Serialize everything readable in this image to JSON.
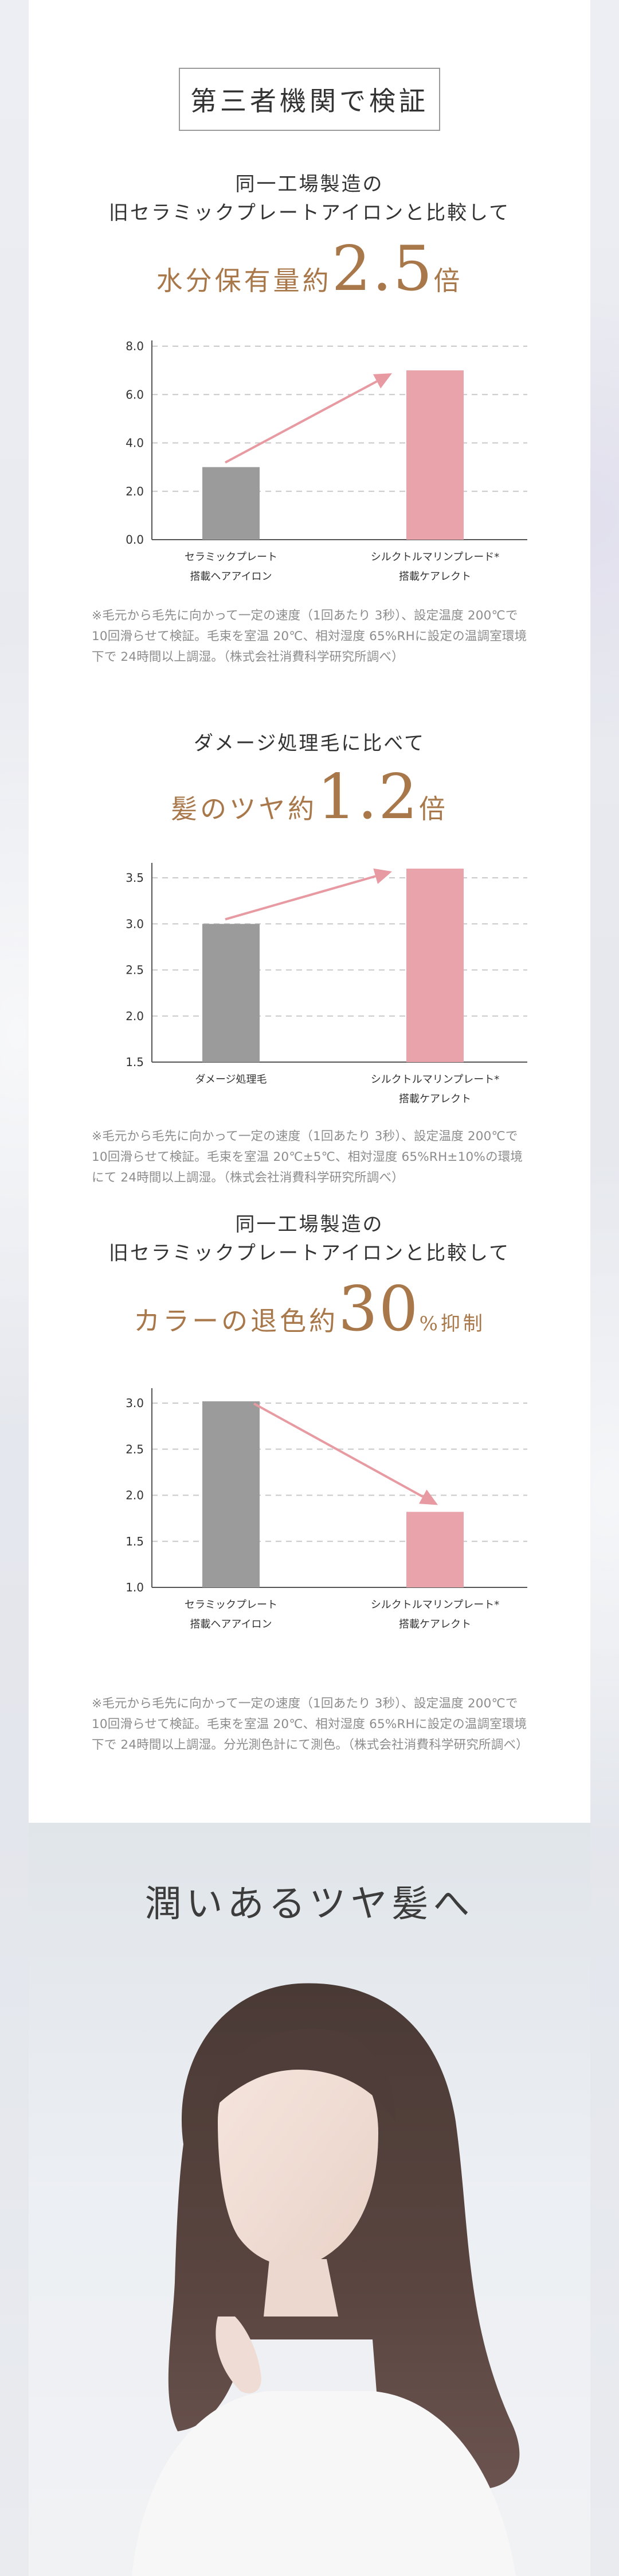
{
  "header": {
    "title": "第三者機関で検証"
  },
  "sections": [
    {
      "sub_lines": [
        "同一工場製造の",
        "旧セラミックプレートアイロンと比較して"
      ],
      "head_text": "水分保有量約",
      "head_num": "2.5",
      "head_unit": "倍",
      "note": "※毛元から毛先に向かって一定の速度（1回あたり 3秒）、設定温度 200℃で 10回滑らせて検証。毛束を室温 20℃、相対湿度 65%RHに設定の温調室環境下で 24時間以上調湿。（株式会社消費科学研究所調べ）"
    },
    {
      "sub_lines": [
        "ダメージ処理毛に比べて"
      ],
      "head_text": "髪のツヤ約",
      "head_num": "1.2",
      "head_unit": "倍",
      "note": "※毛元から毛先に向かって一定の速度（1回あたり 3秒）、設定温度 200℃で 10回滑らせて検証。毛束を室温 20℃±5℃、相対湿度 65%RH±10%の環境にて 24時間以上調湿。（株式会社消費科学研究所調べ）"
    },
    {
      "sub_lines": [
        "同一工場製造の",
        "旧セラミックプレートアイロンと比較して"
      ],
      "head_text": "カラーの退色約",
      "head_num": "30",
      "head_unit": "%抑制",
      "note": "※毛元から毛先に向かって一定の速度（1回あたり 3秒）、設定温度 200℃で 10回滑らせて検証。毛束を室温 20℃、相対湿度 65%RHに設定の温調室環境下で 24時間以上調湿。分光測色計にて測色。（株式会社消費科学研究所調べ）"
    }
  ],
  "chart_data": [
    {
      "type": "bar",
      "categories": [
        [
          "セラミックプレート",
          "搭載ヘアアイロン"
        ],
        [
          "シルクトルマリンプレード*",
          "搭載ケアレクト"
        ]
      ],
      "values": [
        3.0,
        7.0
      ],
      "ylim": [
        0,
        8.0
      ],
      "yticks": [
        "0.0",
        "2.0",
        "4.0",
        "6.0",
        "8.0"
      ],
      "ytick_values": [
        0,
        2,
        4,
        6,
        8
      ],
      "colors": [
        "#9b9b9b",
        "#e8a3ab"
      ],
      "arrow": "up",
      "grid": true
    },
    {
      "type": "bar",
      "categories": [
        [
          "ダメージ処理毛"
        ],
        [
          "シルクトルマリンプレート*",
          "搭載ケアレクト"
        ]
      ],
      "values": [
        3.0,
        3.6
      ],
      "ylim": [
        1.5,
        3.6
      ],
      "yticks": [
        "1.5",
        "2.0",
        "2.5",
        "3.0",
        "3.5"
      ],
      "ytick_values": [
        1.5,
        2.0,
        2.5,
        3.0,
        3.5
      ],
      "colors": [
        "#9b9b9b",
        "#e8a3ab"
      ],
      "arrow": "up",
      "grid": true
    },
    {
      "type": "bar",
      "categories": [
        [
          "セラミックプレート",
          "搭載ヘアアイロン"
        ],
        [
          "シルクトルマリンプレート*",
          "搭載ケアレクト"
        ]
      ],
      "values": [
        3.02,
        1.82
      ],
      "ylim": [
        1.0,
        3.1
      ],
      "yticks": [
        "1.0",
        "1.5",
        "2.0",
        "2.5",
        "3.0"
      ],
      "ytick_values": [
        1.0,
        1.5,
        2.0,
        2.5,
        3.0
      ],
      "colors": [
        "#9b9b9b",
        "#e8a3ab"
      ],
      "arrow": "down",
      "grid": true
    }
  ],
  "hero": {
    "title": "潤いあるツヤ髪へ"
  },
  "colors": {
    "accent": "#a9784a",
    "arrow": "#e79aa1",
    "bar_gray": "#9b9b9b",
    "bar_pink": "#e8a3ab"
  }
}
